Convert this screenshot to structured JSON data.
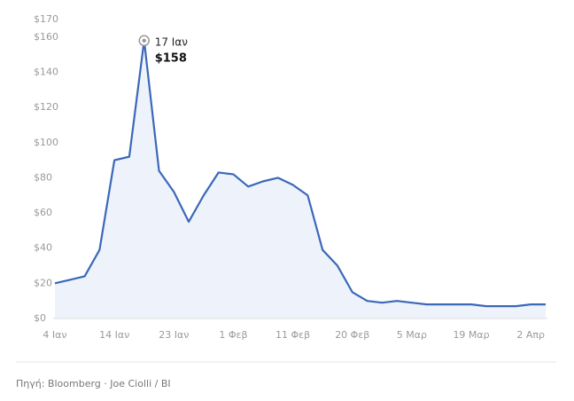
{
  "chart_data": {
    "type": "area",
    "categories": [
      "4 Ιαν",
      null,
      null,
      null,
      "14 Ιαν",
      null,
      null,
      null,
      "23 Ιαν",
      null,
      null,
      null,
      "1 Φεβ",
      null,
      null,
      null,
      "11 Φεβ",
      null,
      null,
      null,
      "20 Φεβ",
      null,
      null,
      null,
      "5 Μαρ",
      null,
      null,
      null,
      "19 Μαρ",
      null,
      null,
      null,
      "2 Απρ",
      null
    ],
    "values": [
      20,
      22,
      24,
      39,
      90,
      92,
      158,
      84,
      72,
      55,
      70,
      83,
      82,
      75,
      78,
      80,
      76,
      70,
      39,
      30,
      15,
      10,
      9,
      10,
      9,
      8,
      8,
      8,
      8,
      7,
      7,
      7,
      8,
      8
    ],
    "value_labels": [
      null,
      null,
      null,
      null,
      null,
      null,
      "$158",
      null,
      null,
      null,
      null,
      null,
      null,
      null,
      null,
      null,
      null,
      null,
      null,
      null,
      null,
      null,
      null,
      null,
      null,
      null,
      null,
      null,
      null,
      null,
      null,
      null,
      null,
      null
    ],
    "annotation": "17 Ιαν",
    "color": "#3b68b8",
    "fill": "#eef3fb",
    "ylim": [
      0,
      170
    ],
    "yticks": [
      {
        "value": 0,
        "label": "$0"
      },
      {
        "value": 20,
        "label": "$20"
      },
      {
        "value": 40,
        "label": "$40"
      },
      {
        "value": 60,
        "label": "$60"
      },
      {
        "value": 80,
        "label": "$80"
      },
      {
        "value": 100,
        "label": "$100"
      },
      {
        "value": 120,
        "label": "$120"
      },
      {
        "value": 140,
        "label": "$140"
      },
      {
        "value": 160,
        "label": "$160"
      },
      {
        "value": 170,
        "label": "$170"
      }
    ],
    "grid": false,
    "source": "Πηγή: Bloomberg · Joe Ciolli / BI"
  }
}
